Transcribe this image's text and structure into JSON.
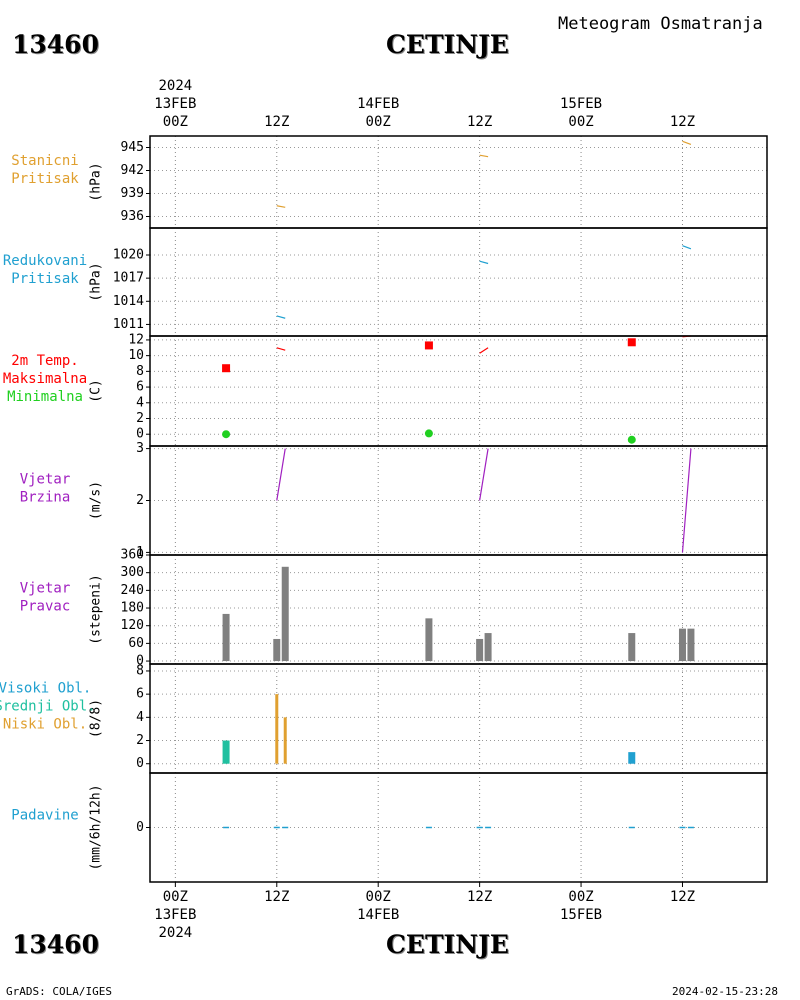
{
  "header": {
    "station_id": "13460",
    "station_name": "CETINJE",
    "product_title": "Meteogram Osmatranja"
  },
  "footer": {
    "station_id": "13460",
    "station_name": "CETINJE",
    "credit": "GrADS: COLA/IGES",
    "timestamp": "2024-02-15-23:28"
  },
  "colors": {
    "stanicni": "#e0a030",
    "redukovani": "#20a0d0",
    "maks": "#ff0000",
    "min": "#20d020",
    "wind_speed": "#a020c0",
    "wind_dir": "#808080",
    "visoki": "#20a0d0",
    "srednji": "#20c0a0",
    "niski": "#e0a030",
    "padavine": "#20a0d0"
  },
  "chart_data": {
    "type": "meteogram",
    "x_axis": {
      "year": "2024",
      "top_labels": [
        {
          "t": 0,
          "time": "00Z",
          "date": "13FEB",
          "year": "2024"
        },
        {
          "t": 12,
          "time": "12Z"
        },
        {
          "t": 24,
          "time": "00Z",
          "date": "14FEB"
        },
        {
          "t": 36,
          "time": "12Z"
        },
        {
          "t": 48,
          "time": "00Z",
          "date": "15FEB"
        },
        {
          "t": 60,
          "time": "12Z"
        }
      ],
      "bottom_labels": [
        {
          "t": 0,
          "time": "00Z",
          "date": "13FEB",
          "year": "2024"
        },
        {
          "t": 12,
          "time": "12Z"
        },
        {
          "t": 24,
          "time": "00Z",
          "date": "14FEB"
        },
        {
          "t": 36,
          "time": "12Z"
        },
        {
          "t": 48,
          "time": "00Z",
          "date": "15FEB"
        },
        {
          "t": 60,
          "time": "12Z"
        }
      ],
      "range_hours": [
        -3,
        70
      ]
    },
    "panels": [
      {
        "id": "stanicni",
        "labels": [
          {
            "text": "Stanicni",
            "color": "stanicni"
          },
          {
            "text": "Pritisak",
            "color": "stanicni"
          }
        ],
        "unit": "(hPa)",
        "ylim": [
          934.5,
          946.5
        ],
        "ticks": [
          945,
          942,
          939,
          936
        ],
        "series": [
          {
            "kind": "segments",
            "color": "stanicni",
            "points": [
              [
                12,
                937.4
              ],
              [
                13,
                937.2
              ]
            ]
          },
          {
            "kind": "segments",
            "color": "stanicni",
            "points": [
              [
                36,
                944.0
              ],
              [
                37,
                943.8
              ]
            ]
          },
          {
            "kind": "segments",
            "color": "stanicni",
            "points": [
              [
                60,
                945.8
              ],
              [
                61,
                945.4
              ]
            ]
          }
        ]
      },
      {
        "id": "redukovani",
        "labels": [
          {
            "text": "Redukovani",
            "color": "redukovani"
          },
          {
            "text": "Pritisak",
            "color": "redukovani"
          }
        ],
        "unit": "(hPa)",
        "ylim": [
          1009.5,
          1023.5
        ],
        "ticks": [
          1020,
          1017,
          1014,
          1011
        ],
        "series": [
          {
            "kind": "segments",
            "color": "redukovani",
            "points": [
              [
                12,
                1012.1
              ],
              [
                13,
                1011.8
              ]
            ]
          },
          {
            "kind": "segments",
            "color": "redukovani",
            "points": [
              [
                36,
                1019.2
              ],
              [
                37,
                1018.9
              ]
            ]
          },
          {
            "kind": "segments",
            "color": "redukovani",
            "points": [
              [
                60,
                1021.2
              ],
              [
                61,
                1020.8
              ]
            ]
          }
        ]
      },
      {
        "id": "temp",
        "labels": [
          {
            "text": "2m Temp.",
            "color": "maks"
          },
          {
            "text": "Maksimalna",
            "color": "maks"
          },
          {
            "text": "Minimalna",
            "color": "min"
          }
        ],
        "unit": "(C)",
        "ylim": [
          -1.5,
          12.5
        ],
        "ticks": [
          12,
          10,
          8,
          6,
          4,
          2,
          0
        ],
        "markers_max": [
          [
            6,
            8.4
          ],
          [
            30,
            11.3
          ],
          [
            54,
            11.7
          ]
        ],
        "markers_min": [
          [
            6,
            0.0
          ],
          [
            30,
            0.1
          ],
          [
            54,
            -0.7
          ]
        ],
        "series": [
          {
            "kind": "segments",
            "color": "maks",
            "points": [
              [
                12,
                11.0
              ],
              [
                13,
                10.7
              ]
            ]
          },
          {
            "kind": "segments",
            "color": "maks",
            "points": [
              [
                36,
                10.3
              ],
              [
                37,
                11.0
              ]
            ]
          },
          {
            "kind": "segments",
            "color": "maks",
            "points": [
              [
                60,
                12.4
              ],
              [
                61,
                12.5
              ]
            ]
          }
        ]
      },
      {
        "id": "wind_speed",
        "labels": [
          {
            "text": "Vjetar",
            "color": "wind_speed"
          },
          {
            "text": "Brzina",
            "color": "wind_speed"
          }
        ],
        "unit": "(m/s)",
        "ylim": [
          0.95,
          3.05
        ],
        "ticks": [
          3,
          2,
          1
        ],
        "series": [
          {
            "kind": "segments",
            "color": "wind_speed",
            "points": [
              [
                12,
                2.0
              ],
              [
                13,
                3.0
              ]
            ]
          },
          {
            "kind": "segments",
            "color": "wind_speed",
            "points": [
              [
                36,
                2.0
              ],
              [
                37,
                3.0
              ]
            ]
          },
          {
            "kind": "segments",
            "color": "wind_speed",
            "points": [
              [
                60,
                1.0
              ],
              [
                61,
                3.0
              ]
            ]
          }
        ]
      },
      {
        "id": "wind_dir",
        "labels": [
          {
            "text": "Vjetar",
            "color": "wind_speed"
          },
          {
            "text": "Pravac",
            "color": "wind_speed"
          }
        ],
        "unit": "(stepeni)",
        "ylim": [
          -10,
          360
        ],
        "ticks": [
          360,
          300,
          240,
          180,
          120,
          60,
          0
        ],
        "bars": [
          [
            6,
            160
          ],
          [
            12,
            75
          ],
          [
            13,
            320
          ],
          [
            30,
            145
          ],
          [
            36,
            75
          ],
          [
            37,
            95
          ],
          [
            54,
            95
          ],
          [
            60,
            110
          ],
          [
            61,
            110
          ]
        ]
      },
      {
        "id": "clouds",
        "labels": [
          {
            "text": "Visoki Obl.",
            "color": "visoki"
          },
          {
            "text": "Srednji Obl.",
            "color": "srednji"
          },
          {
            "text": "Niski Obl.",
            "color": "niski"
          }
        ],
        "unit": "(8/8)",
        "ylim": [
          -0.8,
          8.6
        ],
        "ticks": [
          8,
          6,
          4,
          2,
          0
        ],
        "bars_srednji": [
          [
            6,
            2
          ]
        ],
        "bars_visoki": [
          [
            54,
            1
          ]
        ],
        "bars_niski": [
          [
            12,
            6
          ],
          [
            13,
            4
          ]
        ]
      },
      {
        "id": "padavine",
        "labels": [
          {
            "text": "Padavine",
            "color": "padavine"
          }
        ],
        "unit": "(mm/6h/12h)",
        "ylim": [
          -5,
          5
        ],
        "ticks": [
          0
        ],
        "points": [
          [
            6,
            0
          ],
          [
            12,
            0
          ],
          [
            13,
            0
          ],
          [
            30,
            0
          ],
          [
            36,
            0
          ],
          [
            37,
            0
          ],
          [
            54,
            0
          ],
          [
            60,
            0
          ],
          [
            61,
            0
          ]
        ]
      }
    ]
  }
}
